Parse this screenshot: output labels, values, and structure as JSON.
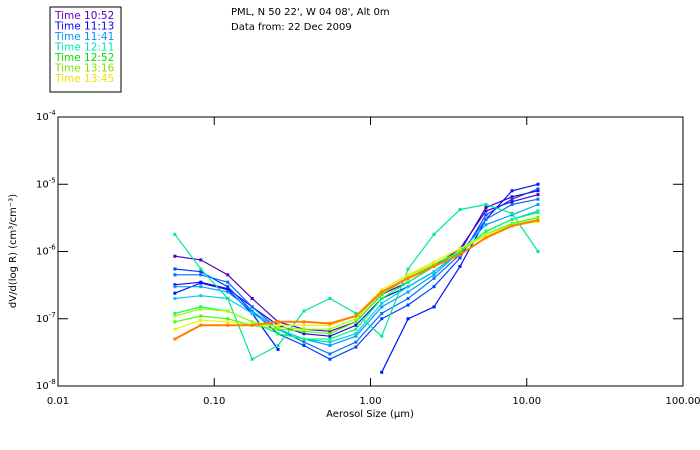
{
  "chart_data": {
    "type": "line",
    "title_lines": [
      "PML, N 50 22', W 04 08', Alt 0m",
      "Data from: 22 Dec 2009"
    ],
    "xlabel": "Aerosol Size (µm)",
    "ylabel": "dV/d(log R) (cm³/cm⁻³)",
    "xscale": "log",
    "yscale": "log",
    "xlim": [
      0.01,
      100
    ],
    "ylim": [
      1e-08,
      0.0001
    ],
    "grid": false,
    "legend_placement": "top-left (outside plot)",
    "xticks": [
      {
        "value": 0.01,
        "label": "0.01"
      },
      {
        "value": 0.1,
        "label": "0.10"
      },
      {
        "value": 1,
        "label": "1.00"
      },
      {
        "value": 10,
        "label": "10.00"
      },
      {
        "value": 100,
        "label": "100.00"
      }
    ],
    "yticks": [
      {
        "value": 0.0001,
        "base": "10",
        "exp": "-4"
      },
      {
        "value": 1e-05,
        "base": "10",
        "exp": "-5"
      },
      {
        "value": 1e-06,
        "base": "10",
        "exp": "-6"
      },
      {
        "value": 1e-07,
        "base": "10",
        "exp": "-7"
      },
      {
        "value": 1e-08,
        "base": "10",
        "exp": "-8"
      }
    ],
    "legend": [
      {
        "label": "Time 10:52",
        "color": "#6000c0"
      },
      {
        "label": "Time 11:13",
        "color": "#0000ff"
      },
      {
        "label": "Time 11:41",
        "color": "#0090ff"
      },
      {
        "label": "Time 12:11",
        "color": "#00e8c0"
      },
      {
        "label": "Time 12:52",
        "color": "#00e000"
      },
      {
        "label": "Time 13:16",
        "color": "#80e000"
      },
      {
        "label": "Time 13:45",
        "color": "#f0e000"
      }
    ],
    "x": [
      0.056,
      0.082,
      0.122,
      0.175,
      0.256,
      0.375,
      0.55,
      0.807,
      1.18,
      1.74,
      2.55,
      3.74,
      5.48,
      8.05,
      11.8
    ],
    "series": [
      {
        "color": "#5000c0",
        "values": [
          8.5e-07,
          7.5e-07,
          4.5e-07,
          2e-07,
          9e-08,
          7e-08,
          6.5e-08,
          9e-08,
          2.3e-07,
          3.5e-07,
          6e-07,
          1.1e-06,
          4e-06,
          5.5e-06,
          7e-06
        ]
      },
      {
        "color": "#3000e0",
        "values": [
          3.2e-07,
          3.5e-07,
          2.8e-07,
          1.5e-07,
          8e-08,
          6e-08,
          5.5e-08,
          8e-08,
          2e-07,
          3e-07,
          5e-07,
          1e-06,
          4.5e-06,
          6.5e-06,
          8e-06
        ]
      },
      {
        "color": "#0010ff",
        "values": [
          2.4e-07,
          3.4e-07,
          2.7e-07,
          1.2e-07,
          3.5e-08,
          null,
          null,
          null,
          1.6e-08,
          1e-07,
          1.5e-07,
          6e-07,
          3e-06,
          8e-06,
          1e-05
        ]
      },
      {
        "color": "#0040ff",
        "values": [
          5.5e-07,
          5e-07,
          3e-07,
          1.3e-07,
          6e-08,
          4e-08,
          2.5e-08,
          3.8e-08,
          1e-07,
          1.6e-07,
          3e-07,
          8e-07,
          3.5e-06,
          6e-06,
          8.5e-06
        ]
      },
      {
        "color": "#0070ff",
        "values": [
          4.5e-07,
          4.5e-07,
          3.5e-07,
          1.5e-07,
          7e-08,
          4.5e-08,
          3e-08,
          4.5e-08,
          1.2e-07,
          2e-07,
          4e-07,
          9e-07,
          3e-06,
          5e-06,
          6e-06
        ]
      },
      {
        "color": "#00a0ff",
        "values": [
          3e-07,
          3e-07,
          2.5e-07,
          1.3e-07,
          7e-08,
          5e-08,
          4e-08,
          5.5e-08,
          1.5e-07,
          2.5e-07,
          4.5e-07,
          1e-06,
          2.5e-06,
          3.5e-06,
          5e-06
        ]
      },
      {
        "color": "#00d0f0",
        "values": [
          2e-07,
          2.2e-07,
          2e-07,
          1.2e-07,
          7e-08,
          5e-08,
          4.5e-08,
          6e-08,
          1.7e-07,
          3e-07,
          5e-07,
          1e-06,
          2e-06,
          3e-06,
          4e-06
        ]
      },
      {
        "color": "#00e890",
        "values": [
          1.8e-06,
          5.5e-07,
          2e-07,
          2.5e-08,
          4e-08,
          1.3e-07,
          2e-07,
          1.2e-07,
          5.5e-08,
          5.5e-07,
          1.8e-06,
          4.2e-06,
          5e-06,
          3.7e-06,
          1e-06
        ]
      },
      {
        "color": "#00ff60",
        "values": [
          1.2e-07,
          1.5e-07,
          1.3e-07,
          9e-08,
          6e-08,
          5e-08,
          5e-08,
          7e-08,
          2e-07,
          3.5e-07,
          6e-07,
          1e-06,
          2e-06,
          3e-06,
          3.8e-06
        ]
      },
      {
        "color": "#40ff00",
        "values": [
          9e-08,
          1.1e-07,
          1e-07,
          8e-08,
          7e-08,
          6.5e-08,
          6e-08,
          9e-08,
          2.3e-07,
          4e-07,
          6.5e-07,
          1e-06,
          1.8e-06,
          2.6e-06,
          3.2e-06
        ]
      },
      {
        "color": "#a0ff00",
        "values": [
          1.1e-07,
          1.4e-07,
          1.3e-07,
          9e-08,
          7.5e-08,
          7e-08,
          7e-08,
          1e-07,
          2.5e-07,
          4.2e-07,
          7e-07,
          1.1e-06,
          1.8e-06,
          2.5e-06,
          3e-06
        ]
      },
      {
        "color": "#f0f000",
        "values": [
          7e-08,
          9.5e-08,
          9e-08,
          8e-08,
          8e-08,
          8e-08,
          8e-08,
          1.1e-07,
          2.7e-07,
          4.5e-07,
          7e-07,
          1.1e-06,
          1.7e-06,
          2.4e-06,
          2.8e-06
        ]
      },
      {
        "color": "#ff8000",
        "values": [
          5e-08,
          8e-08,
          8e-08,
          8e-08,
          9e-08,
          9e-08,
          8.5e-08,
          1.1e-07,
          2.5e-07,
          4e-07,
          6e-07,
          9e-07,
          1.6e-06,
          2.4e-06,
          2.9e-06
        ]
      }
    ]
  }
}
